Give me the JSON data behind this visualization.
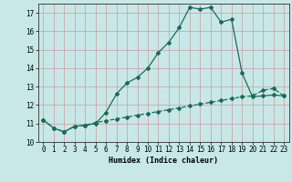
{
  "xlabel": "Humidex (Indice chaleur)",
  "background_color": "#c8e8e8",
  "grid_color": "#c8a8a8",
  "line_color": "#1a6b5a",
  "xlim": [
    -0.5,
    23.5
  ],
  "ylim": [
    10,
    17.5
  ],
  "yticks": [
    10,
    11,
    12,
    13,
    14,
    15,
    16,
    17
  ],
  "xticks": [
    0,
    1,
    2,
    3,
    4,
    5,
    6,
    7,
    8,
    9,
    10,
    11,
    12,
    13,
    14,
    15,
    16,
    17,
    18,
    19,
    20,
    21,
    22,
    23
  ],
  "line1_x": [
    0,
    1,
    2,
    3,
    4,
    5,
    6,
    7,
    8,
    9,
    10,
    11,
    12,
    13,
    14,
    15,
    16,
    17,
    18,
    19,
    20,
    21,
    22,
    23
  ],
  "line1_y": [
    11.2,
    10.75,
    10.55,
    10.85,
    10.9,
    11.0,
    11.6,
    12.6,
    13.2,
    13.5,
    14.0,
    14.85,
    15.4,
    16.2,
    17.3,
    17.2,
    17.3,
    16.5,
    16.65,
    13.75,
    12.45,
    12.5,
    12.55,
    12.5
  ],
  "line2_x": [
    0,
    1,
    2,
    3,
    4,
    5,
    6,
    7,
    8,
    9,
    10,
    11,
    12,
    13,
    14,
    15,
    16,
    17,
    18,
    19,
    20,
    21,
    22,
    23
  ],
  "line2_y": [
    11.2,
    10.75,
    10.55,
    10.85,
    10.9,
    11.05,
    11.15,
    11.25,
    11.35,
    11.45,
    11.55,
    11.65,
    11.75,
    11.85,
    11.95,
    12.05,
    12.15,
    12.25,
    12.35,
    12.45,
    12.5,
    12.8,
    12.9,
    12.5
  ],
  "xlabel_fontsize": 6,
  "tick_fontsize": 5.5
}
